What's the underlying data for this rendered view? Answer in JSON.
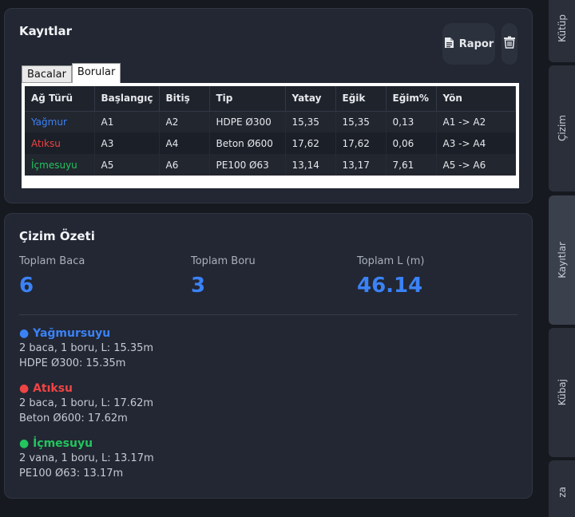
{
  "records": {
    "title": "Kayıtlar",
    "report_label": "Rapor",
    "report_icon": "document-icon",
    "delete_icon": "trash-icon",
    "tabs": [
      {
        "label": "Bacalar",
        "active": false
      },
      {
        "label": "Borular",
        "active": true
      }
    ],
    "columns": [
      "Ağ Türü",
      "Başlangıç",
      "Bitiş",
      "Tip",
      "Yatay",
      "Eğik",
      "Eğim%",
      "Yön"
    ],
    "rows": [
      {
        "type": "Yağmur",
        "color": "#3b82f6",
        "start": "A1",
        "end": "A2",
        "tip": "HDPE Ø300",
        "yatay": "15,35",
        "egik": "15,35",
        "egim": "0,13",
        "yon": "A1 -> A2"
      },
      {
        "type": "Atıksu",
        "color": "#ef4444",
        "start": "A3",
        "end": "A4",
        "tip": "Beton Ø600",
        "yatay": "17,62",
        "egik": "17,62",
        "egim": "0,06",
        "yon": "A3 -> A4"
      },
      {
        "type": "İçmesuyu",
        "color": "#22c55e",
        "start": "A5",
        "end": "A6",
        "tip": "PE100 Ø63",
        "yatay": "13,14",
        "egik": "13,17",
        "egim": "7,61",
        "yon": "A5 -> A6"
      }
    ]
  },
  "summary": {
    "title": "Çizim Özeti",
    "stats": [
      {
        "label": "Toplam Baca",
        "value": "6"
      },
      {
        "label": "Toplam Boru",
        "value": "3"
      },
      {
        "label": "Toplam L (m)",
        "value": "46.14"
      }
    ],
    "accent": "#3b82f6",
    "networks": [
      {
        "title": "● Yağmursuyu",
        "color": "#3b82f6",
        "line1": "2 baca, 1 boru, L: 15.35m",
        "line2": "HDPE Ø300: 15.35m"
      },
      {
        "title": "● Atıksu",
        "color": "#ef4444",
        "line1": "2 baca, 1 boru, L: 17.62m",
        "line2": "Beton Ø600: 17.62m"
      },
      {
        "title": "● İçmesuyu",
        "color": "#22c55e",
        "line1": "2 vana, 1 boru, L: 13.17m",
        "line2": "PE100 Ø63: 13.17m"
      }
    ]
  },
  "sidebar": {
    "tabs": [
      {
        "label": "Kütüp",
        "active": false
      },
      {
        "label": "Çizim",
        "active": false
      },
      {
        "label": "Kayıtlar",
        "active": true
      },
      {
        "label": "Kübaj",
        "active": false
      },
      {
        "label": "za",
        "active": false
      }
    ]
  }
}
